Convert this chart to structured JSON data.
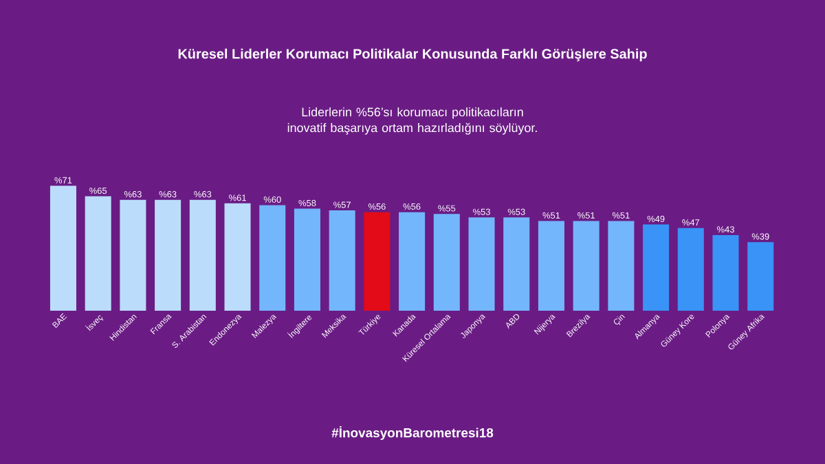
{
  "chart_data": {
    "type": "bar",
    "title": "Küresel Liderler Korumacı Politikalar Konusunda Farklı Görüşlere Sahip",
    "subtitle": "Liderlerin %56’sı korumacı politikacıların inovatif başarıya ortam hazırladığını söylüyor.",
    "categories": [
      "BAE",
      "İsveç",
      "Hindistan",
      "Fransa",
      "S. Arabistan",
      "Endonezya",
      "Malezya",
      "İngiltere",
      "Meksika",
      "Türkiye",
      "Kanada",
      "Küresel Ortalama",
      "Japonya",
      "ABD",
      "Nijerya",
      "Brezilya",
      "Çin",
      "Almanya",
      "Güney Kore",
      "Polonya",
      "Güney Afrika"
    ],
    "values": [
      71,
      65,
      63,
      63,
      63,
      61,
      60,
      58,
      57,
      56,
      56,
      55,
      53,
      53,
      51,
      51,
      51,
      49,
      47,
      43,
      39
    ],
    "value_labels": [
      "%71",
      "%65",
      "%63",
      "%63",
      "%63",
      "%61",
      "%60",
      "%58",
      "%57",
      "%56",
      "%56",
      "%55",
      "%53",
      "%53",
      "%51",
      "%51",
      "%51",
      "%49",
      "%47",
      "%43",
      "%39"
    ],
    "colors": [
      "#bcdcfc",
      "#bcdcfc",
      "#bcdcfc",
      "#bcdcfc",
      "#bcdcfc",
      "#bcdcfc",
      "#74b6fb",
      "#74b6fb",
      "#74b6fb",
      "#e30b17",
      "#74b6fb",
      "#74b6fb",
      "#74b6fb",
      "#74b6fb",
      "#74b6fb",
      "#74b6fb",
      "#74b6fb",
      "#3a93f6",
      "#3a93f6",
      "#3a93f6",
      "#3a93f6"
    ],
    "annotations": [
      "#İnovasyonBarometresi18"
    ]
  }
}
